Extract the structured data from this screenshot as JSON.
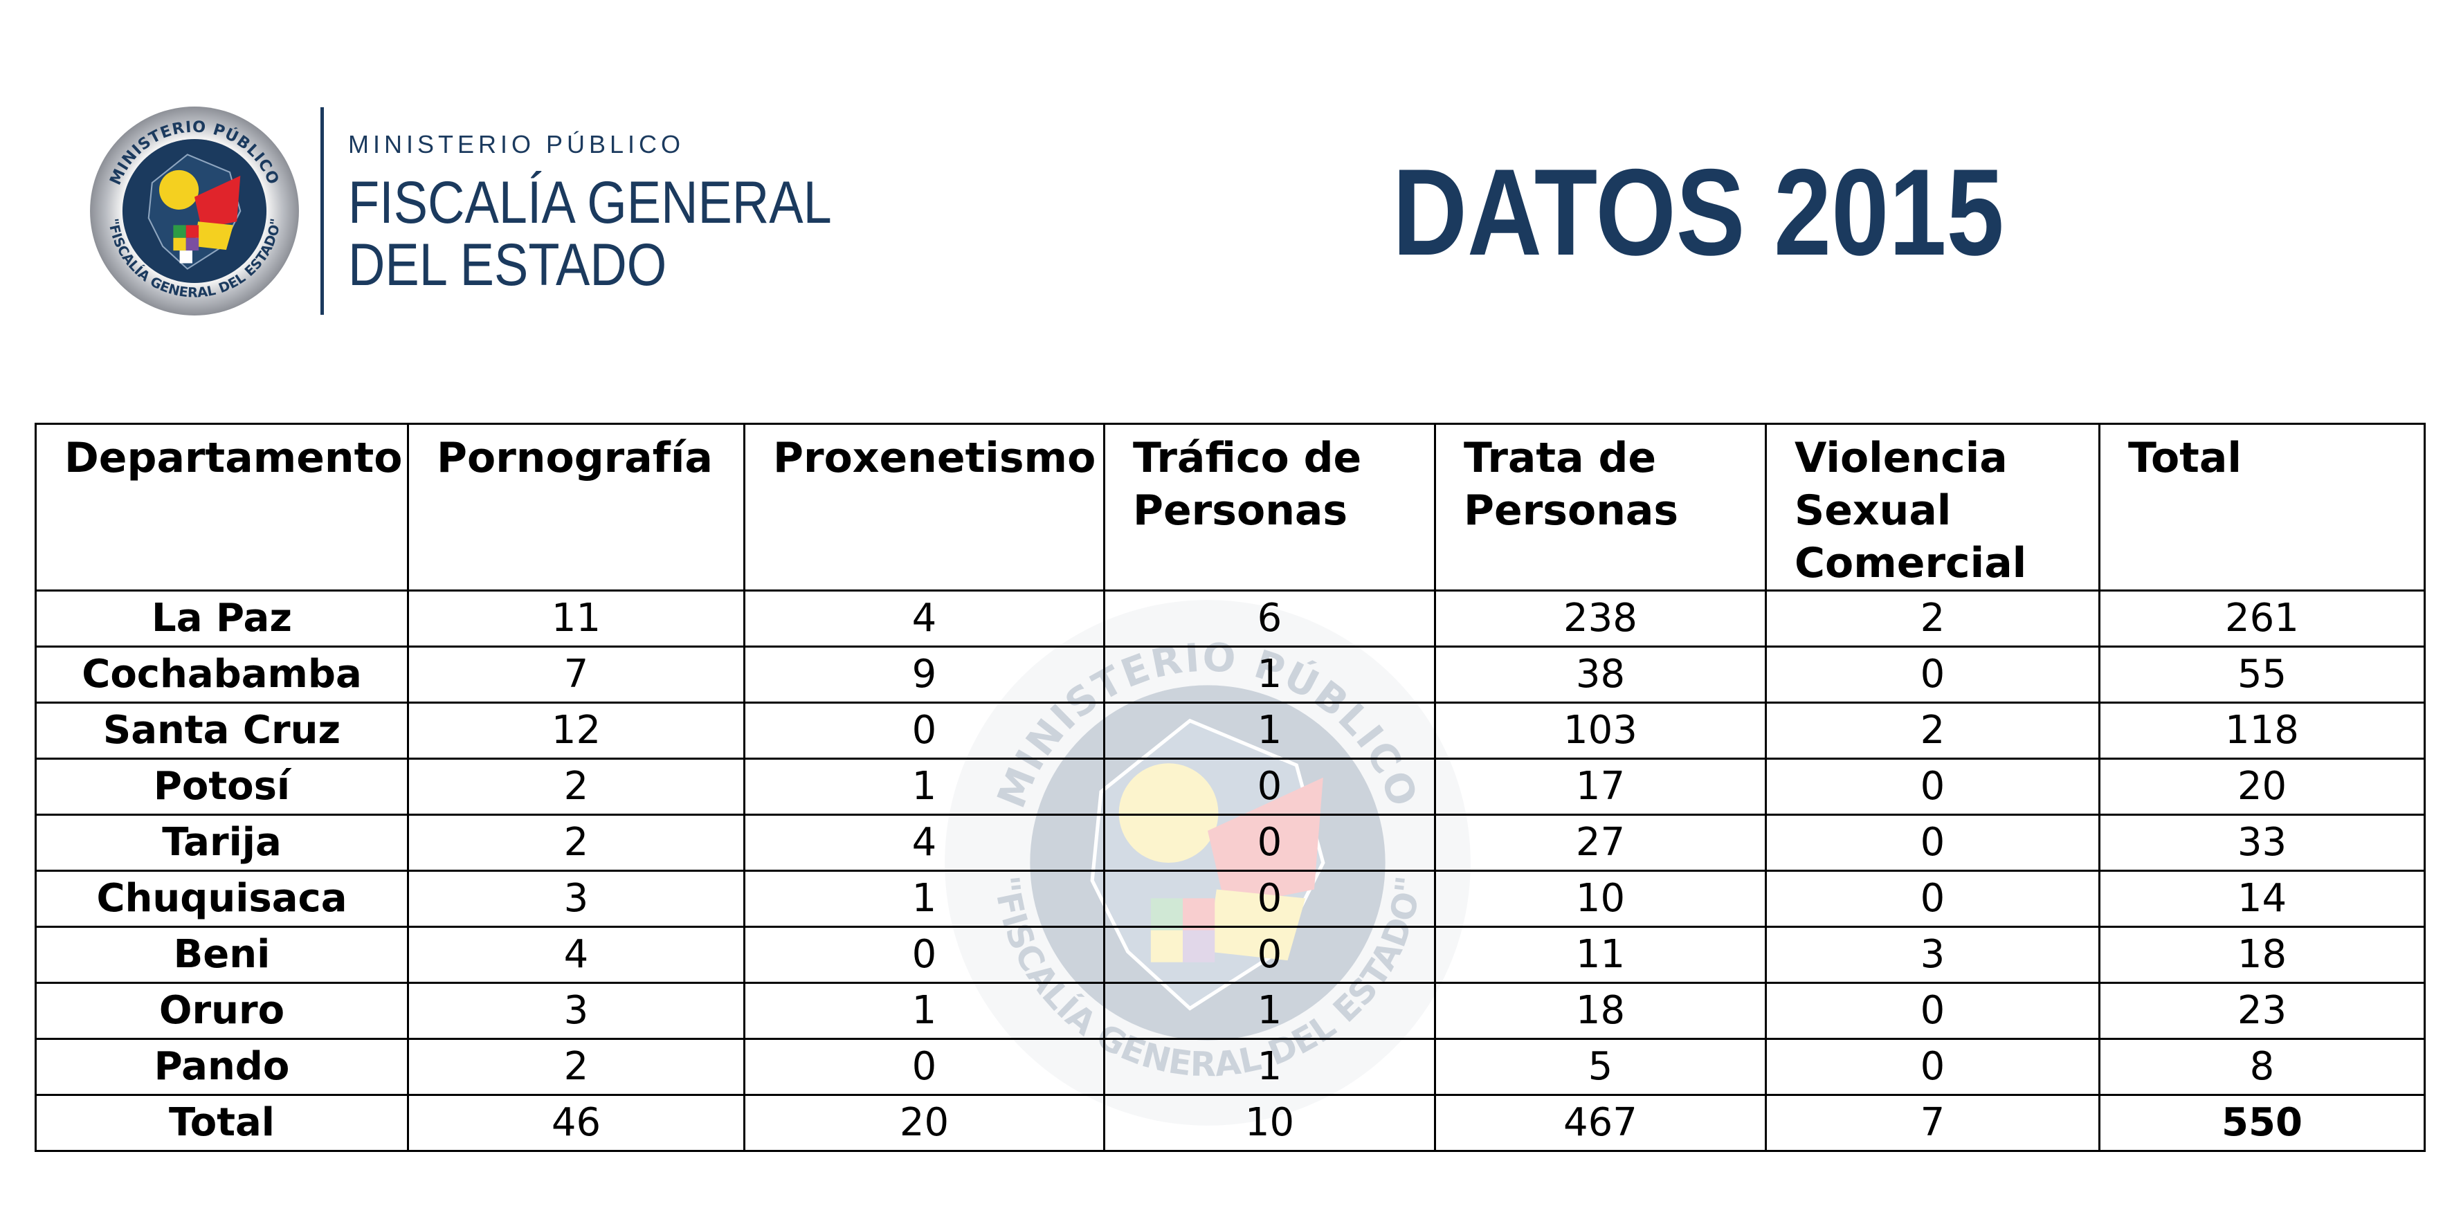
{
  "header": {
    "org_superscript": "MINISTERIO PÚBLICO",
    "org_line1": "FISCALÍA GENERAL",
    "org_line2": "DEL ESTADO",
    "title": "DATOS 2015"
  },
  "seal": {
    "top_text": "MINISTERIO PÚBLICO",
    "bottom_text": "\"FISCALÍA GENERAL DEL ESTADO\""
  },
  "colors": {
    "brand_navy": "#1b3a5e",
    "seal_yellow": "#f4d020",
    "seal_red": "#e0242b",
    "seal_green": "#2e9b45"
  },
  "table": {
    "columns": [
      "Departamento",
      "Pornografía",
      "Proxenetismo",
      "Tráfico de Personas",
      "Trata de Personas",
      "Violencia Sexual Comercial",
      "Total"
    ],
    "rows": [
      [
        "La Paz",
        "11",
        "4",
        "6",
        "238",
        "2",
        "261"
      ],
      [
        "Cochabamba",
        "7",
        "9",
        "1",
        "38",
        "0",
        "55"
      ],
      [
        "Santa Cruz",
        "12",
        "0",
        "1",
        "103",
        "2",
        "118"
      ],
      [
        "Potosí",
        "2",
        "1",
        "0",
        "17",
        "0",
        "20"
      ],
      [
        "Tarija",
        "2",
        "4",
        "0",
        "27",
        "0",
        "33"
      ],
      [
        "Chuquisaca",
        "3",
        "1",
        "0",
        "10",
        "0",
        "14"
      ],
      [
        "Beni",
        "4",
        "0",
        "0",
        "11",
        "3",
        "18"
      ],
      [
        "Oruro",
        "3",
        "1",
        "1",
        "18",
        "0",
        "23"
      ],
      [
        "Pando",
        "2",
        "0",
        "1",
        "5",
        "0",
        "8"
      ]
    ],
    "total_row": [
      "Total",
      "46",
      "20",
      "10",
      "467",
      "7",
      "550"
    ]
  }
}
